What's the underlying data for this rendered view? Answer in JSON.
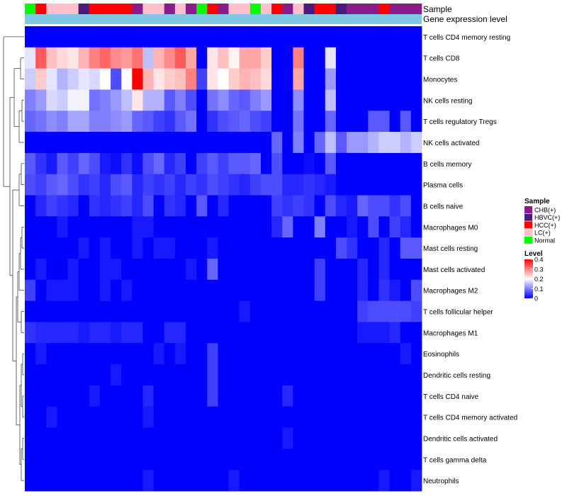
{
  "chart_data": {
    "type": "heatmap",
    "title": "",
    "annotation_rows": [
      "Sample",
      "Gene expression level"
    ],
    "rows": [
      "T cells CD4 memory resting",
      "T cells CD8",
      "Monocytes",
      "NK cells resting",
      "T cells regulatory  Tregs",
      "NK cells activated",
      "B cells memory",
      "Plasma cells",
      "B cells naive",
      "Macrophages M0",
      "Mast cells resting",
      "Mast cells activated",
      "Macrophages M2",
      "T cells follicular helper",
      "Macrophages M1",
      "Eosinophils",
      "Dendritic cells resting",
      "T cells CD4 naive",
      "T cells CD4 memory activated",
      "Dendritic cells activated",
      "T cells gamma delta",
      "Neutrophils"
    ],
    "sample_groups": [
      "Normal",
      "HCC(+)",
      "LC(+)",
      "LC(+)",
      "LC(+)",
      "HBVC(+)",
      "HCC(+)",
      "HCC(+)",
      "HCC(+)",
      "HCC(+)",
      "CHB(+)",
      "LC(+)",
      "LC(+)",
      "CHB(+)",
      "LC(+)",
      "CHB(+)",
      "Normal",
      "HCC(+)",
      "CHB(+)",
      "LC(+)",
      "LC(+)",
      "Normal",
      "LC(+)",
      "HCC(+)",
      "CHB(+)",
      "LC(+)",
      "HBVC(+)",
      "HCC(+)",
      "HCC(+)",
      "HBVC(+)",
      "CHB(+)",
      "CHB(+)",
      "CHB(+)",
      "HCC(+)",
      "CHB(+)",
      "CHB(+)",
      "CHB(+)"
    ],
    "values": [
      [
        0.0,
        0.0,
        0.0,
        0.0,
        0.0,
        0.0,
        0.0,
        0.0,
        0.0,
        0.0,
        0.0,
        0.0,
        0.0,
        0.0,
        0.0,
        0.0,
        0.0,
        0.0,
        0.0,
        0.0,
        0.0,
        0.0,
        0.0,
        0.0,
        0.0,
        0.0,
        0.0,
        0.0,
        0.0,
        0.0,
        0.0,
        0.0,
        0.0,
        0.0,
        0.0,
        0.0,
        0.0
      ],
      [
        0.18,
        0.33,
        0.25,
        0.23,
        0.22,
        0.26,
        0.3,
        0.32,
        0.29,
        0.28,
        0.31,
        0.15,
        0.26,
        0.29,
        0.33,
        0.27,
        0.0,
        0.22,
        0.25,
        0.21,
        0.27,
        0.27,
        0.24,
        0.0,
        0.0,
        0.3,
        0.0,
        0.0,
        0.18,
        0.0,
        0.0,
        0.0,
        0.0,
        0.0,
        0.0,
        0.0,
        0.0
      ],
      [
        0.16,
        0.24,
        0.18,
        0.14,
        0.16,
        0.18,
        0.17,
        0.2,
        0.06,
        0.2,
        0.4,
        0.26,
        0.22,
        0.24,
        0.25,
        0.3,
        0.05,
        0.22,
        0.2,
        0.24,
        0.26,
        0.25,
        0.23,
        0.0,
        0.0,
        0.27,
        0.0,
        0.0,
        0.12,
        0.0,
        0.0,
        0.0,
        0.0,
        0.0,
        0.0,
        0.0,
        0.0
      ],
      [
        0.1,
        0.12,
        0.17,
        0.16,
        0.19,
        0.19,
        0.09,
        0.1,
        0.12,
        0.15,
        0.22,
        0.14,
        0.14,
        0.07,
        0.1,
        0.06,
        0.0,
        0.09,
        0.11,
        0.08,
        0.07,
        0.1,
        0.12,
        0.0,
        0.0,
        0.11,
        0.0,
        0.0,
        0.15,
        0.0,
        0.0,
        0.0,
        0.0,
        0.0,
        0.0,
        0.0,
        0.0
      ],
      [
        0.08,
        0.09,
        0.11,
        0.1,
        0.13,
        0.13,
        0.1,
        0.1,
        0.11,
        0.12,
        0.08,
        0.07,
        0.05,
        0.04,
        0.07,
        0.09,
        0.0,
        0.04,
        0.06,
        0.07,
        0.08,
        0.06,
        0.05,
        0.0,
        0.0,
        0.09,
        0.0,
        0.0,
        0.08,
        0.0,
        0.0,
        0.0,
        0.07,
        0.07,
        0.0,
        0.07,
        0.0
      ],
      [
        0.0,
        0.0,
        0.0,
        0.0,
        0.0,
        0.0,
        0.0,
        0.0,
        0.0,
        0.0,
        0.0,
        0.0,
        0.0,
        0.0,
        0.0,
        0.0,
        0.0,
        0.0,
        0.0,
        0.0,
        0.0,
        0.0,
        0.0,
        0.08,
        0.0,
        0.1,
        0.0,
        0.08,
        0.15,
        0.07,
        0.12,
        0.12,
        0.14,
        0.16,
        0.16,
        0.14,
        0.16
      ],
      [
        0.07,
        0.04,
        0.02,
        0.07,
        0.05,
        0.08,
        0.06,
        0.02,
        0.01,
        0.04,
        0.01,
        0.06,
        0.08,
        0.03,
        0.05,
        0.0,
        0.05,
        0.07,
        0.05,
        0.07,
        0.07,
        0.08,
        0.0,
        0.06,
        0.0,
        0.0,
        0.01,
        0.0,
        0.07,
        0.0,
        0.0,
        0.0,
        0.0,
        0.0,
        0.0,
        0.0,
        0.0
      ],
      [
        0.06,
        0.05,
        0.07,
        0.08,
        0.06,
        0.04,
        0.05,
        0.03,
        0.06,
        0.07,
        0.03,
        0.05,
        0.04,
        0.05,
        0.03,
        0.05,
        0.04,
        0.06,
        0.05,
        0.04,
        0.03,
        0.05,
        0.06,
        0.06,
        0.03,
        0.03,
        0.04,
        0.03,
        0.02,
        0.0,
        0.0,
        0.0,
        0.0,
        0.0,
        0.0,
        0.0,
        0.0
      ],
      [
        0.0,
        0.03,
        0.05,
        0.04,
        0.03,
        0.0,
        0.04,
        0.03,
        0.04,
        0.05,
        0.03,
        0.06,
        0.0,
        0.04,
        0.03,
        0.0,
        0.07,
        0.0,
        0.03,
        0.0,
        0.0,
        0.0,
        0.0,
        0.05,
        0.04,
        0.05,
        0.04,
        0.0,
        0.06,
        0.03,
        0.02,
        0.08,
        0.06,
        0.06,
        0.04,
        0.06,
        0.0
      ],
      [
        0.0,
        0.0,
        0.0,
        0.02,
        0.0,
        0.0,
        0.0,
        0.0,
        0.0,
        0.0,
        0.02,
        0.02,
        0.0,
        0.0,
        0.0,
        0.0,
        0.0,
        0.0,
        0.0,
        0.0,
        0.0,
        0.0,
        0.0,
        0.03,
        0.08,
        0.0,
        0.0,
        0.1,
        0.0,
        0.0,
        0.02,
        0.0,
        0.06,
        0.0,
        0.05,
        0.03,
        0.0
      ],
      [
        0.0,
        0.0,
        0.0,
        0.0,
        0.0,
        0.02,
        0.0,
        0.02,
        0.0,
        0.0,
        0.02,
        0.0,
        0.02,
        0.02,
        0.0,
        0.0,
        0.0,
        0.02,
        0.0,
        0.0,
        0.0,
        0.0,
        0.0,
        0.0,
        0.0,
        0.0,
        0.0,
        0.0,
        0.0,
        0.06,
        0.04,
        0.0,
        0.0,
        0.03,
        0.0,
        0.07,
        0.07
      ],
      [
        0.0,
        0.02,
        0.0,
        0.0,
        0.02,
        0.0,
        0.0,
        0.02,
        0.02,
        0.0,
        0.0,
        0.0,
        0.0,
        0.0,
        0.0,
        0.02,
        0.0,
        0.08,
        0.0,
        0.0,
        0.0,
        0.0,
        0.0,
        0.0,
        0.0,
        0.0,
        0.0,
        0.05,
        0.0,
        0.0,
        0.0,
        0.03,
        0.0,
        0.03,
        0.0,
        0.0,
        0.0
      ],
      [
        0.05,
        0.0,
        0.02,
        0.02,
        0.02,
        0.0,
        0.0,
        0.02,
        0.0,
        0.02,
        0.0,
        0.0,
        0.0,
        0.0,
        0.0,
        0.0,
        0.0,
        0.0,
        0.0,
        0.0,
        0.0,
        0.0,
        0.0,
        0.0,
        0.0,
        0.0,
        0.0,
        0.05,
        0.0,
        0.0,
        0.0,
        0.03,
        0.0,
        0.04,
        0.02,
        0.0,
        0.06
      ],
      [
        0.0,
        0.0,
        0.0,
        0.0,
        0.0,
        0.0,
        0.0,
        0.0,
        0.0,
        0.0,
        0.0,
        0.0,
        0.0,
        0.0,
        0.0,
        0.0,
        0.0,
        0.0,
        0.0,
        0.0,
        0.02,
        0.0,
        0.0,
        0.0,
        0.0,
        0.0,
        0.0,
        0.0,
        0.0,
        0.0,
        0.0,
        0.05,
        0.06,
        0.06,
        0.06,
        0.06,
        0.05
      ],
      [
        0.04,
        0.03,
        0.03,
        0.03,
        0.03,
        0.02,
        0.03,
        0.03,
        0.02,
        0.03,
        0.03,
        0.0,
        0.0,
        0.03,
        0.03,
        0.0,
        0.0,
        0.0,
        0.0,
        0.0,
        0.0,
        0.0,
        0.0,
        0.0,
        0.0,
        0.0,
        0.0,
        0.0,
        0.0,
        0.0,
        0.0,
        0.02,
        0.02,
        0.02,
        0.03,
        0.0,
        0.0
      ],
      [
        0.0,
        0.02,
        0.0,
        0.0,
        0.0,
        0.0,
        0.0,
        0.0,
        0.0,
        0.0,
        0.0,
        0.0,
        0.02,
        0.0,
        0.02,
        0.0,
        0.0,
        0.05,
        0.0,
        0.0,
        0.0,
        0.0,
        0.0,
        0.0,
        0.0,
        0.0,
        0.0,
        0.0,
        0.0,
        0.0,
        0.0,
        0.0,
        0.0,
        0.0,
        0.0,
        0.02,
        0.0
      ],
      [
        0.0,
        0.0,
        0.0,
        0.0,
        0.0,
        0.0,
        0.0,
        0.0,
        0.02,
        0.0,
        0.0,
        0.0,
        0.0,
        0.0,
        0.0,
        0.0,
        0.0,
        0.05,
        0.0,
        0.0,
        0.0,
        0.0,
        0.0,
        0.0,
        0.0,
        0.0,
        0.0,
        0.0,
        0.0,
        0.0,
        0.0,
        0.0,
        0.0,
        0.0,
        0.0,
        0.0,
        0.0
      ],
      [
        0.0,
        0.0,
        0.0,
        0.0,
        0.0,
        0.0,
        0.02,
        0.0,
        0.0,
        0.0,
        0.0,
        0.03,
        0.0,
        0.0,
        0.0,
        0.0,
        0.0,
        0.05,
        0.0,
        0.0,
        0.0,
        0.0,
        0.0,
        0.0,
        0.03,
        0.0,
        0.0,
        0.0,
        0.0,
        0.0,
        0.0,
        0.0,
        0.0,
        0.0,
        0.0,
        0.0,
        0.0
      ],
      [
        0.0,
        0.0,
        0.02,
        0.0,
        0.0,
        0.0,
        0.0,
        0.0,
        0.0,
        0.0,
        0.0,
        0.02,
        0.0,
        0.0,
        0.0,
        0.0,
        0.0,
        0.0,
        0.0,
        0.0,
        0.0,
        0.0,
        0.0,
        0.0,
        0.0,
        0.0,
        0.0,
        0.0,
        0.0,
        0.0,
        0.0,
        0.0,
        0.0,
        0.0,
        0.0,
        0.0,
        0.0
      ],
      [
        0.0,
        0.0,
        0.0,
        0.0,
        0.0,
        0.0,
        0.0,
        0.0,
        0.0,
        0.0,
        0.0,
        0.0,
        0.0,
        0.0,
        0.0,
        0.0,
        0.0,
        0.0,
        0.0,
        0.0,
        0.0,
        0.0,
        0.0,
        0.0,
        0.02,
        0.0,
        0.0,
        0.0,
        0.0,
        0.0,
        0.0,
        0.0,
        0.0,
        0.0,
        0.0,
        0.0,
        0.0
      ],
      [
        0.0,
        0.0,
        0.0,
        0.0,
        0.0,
        0.0,
        0.0,
        0.0,
        0.0,
        0.0,
        0.0,
        0.0,
        0.0,
        0.0,
        0.0,
        0.0,
        0.0,
        0.0,
        0.0,
        0.0,
        0.0,
        0.0,
        0.0,
        0.0,
        0.0,
        0.0,
        0.0,
        0.0,
        0.0,
        0.0,
        0.0,
        0.0,
        0.0,
        0.0,
        0.0,
        0.0,
        0.0
      ],
      [
        0.0,
        0.0,
        0.0,
        0.0,
        0.0,
        0.0,
        0.0,
        0.0,
        0.0,
        0.0,
        0.0,
        0.02,
        0.0,
        0.0,
        0.0,
        0.0,
        0.0,
        0.0,
        0.0,
        0.02,
        0.0,
        0.0,
        0.0,
        0.0,
        0.0,
        0.0,
        0.0,
        0.0,
        0.0,
        0.0,
        0.0,
        0.0,
        0.0,
        0.02,
        0.0,
        0.0,
        0.02
      ]
    ],
    "level_legend": {
      "title": "Level",
      "ticks": [
        0,
        0.1,
        0.2,
        0.3,
        0.4
      ],
      "tick_labels": [
        "0",
        "0.1",
        "0.2",
        "0.3",
        "0.4"
      ],
      "range": [
        0,
        0.4
      ],
      "placement": "right"
    },
    "sample_legend": {
      "title": "Sample",
      "entries": [
        {
          "label": "CHB(+)",
          "color": "#8B1A8B"
        },
        {
          "label": "HBVC(+)",
          "color": "#4B1A7E"
        },
        {
          "label": "HCC(+)",
          "color": "#FF0000"
        },
        {
          "label": "LC(+)",
          "color": "#FFC0CB"
        },
        {
          "label": "Normal",
          "color": "#00FF00"
        }
      ],
      "placement": "right"
    },
    "gene_expression_color": "#7EC8E3",
    "colors": {
      "low": "#0000FF",
      "mid": "#FFFFFF",
      "high": "#FF0000"
    }
  }
}
